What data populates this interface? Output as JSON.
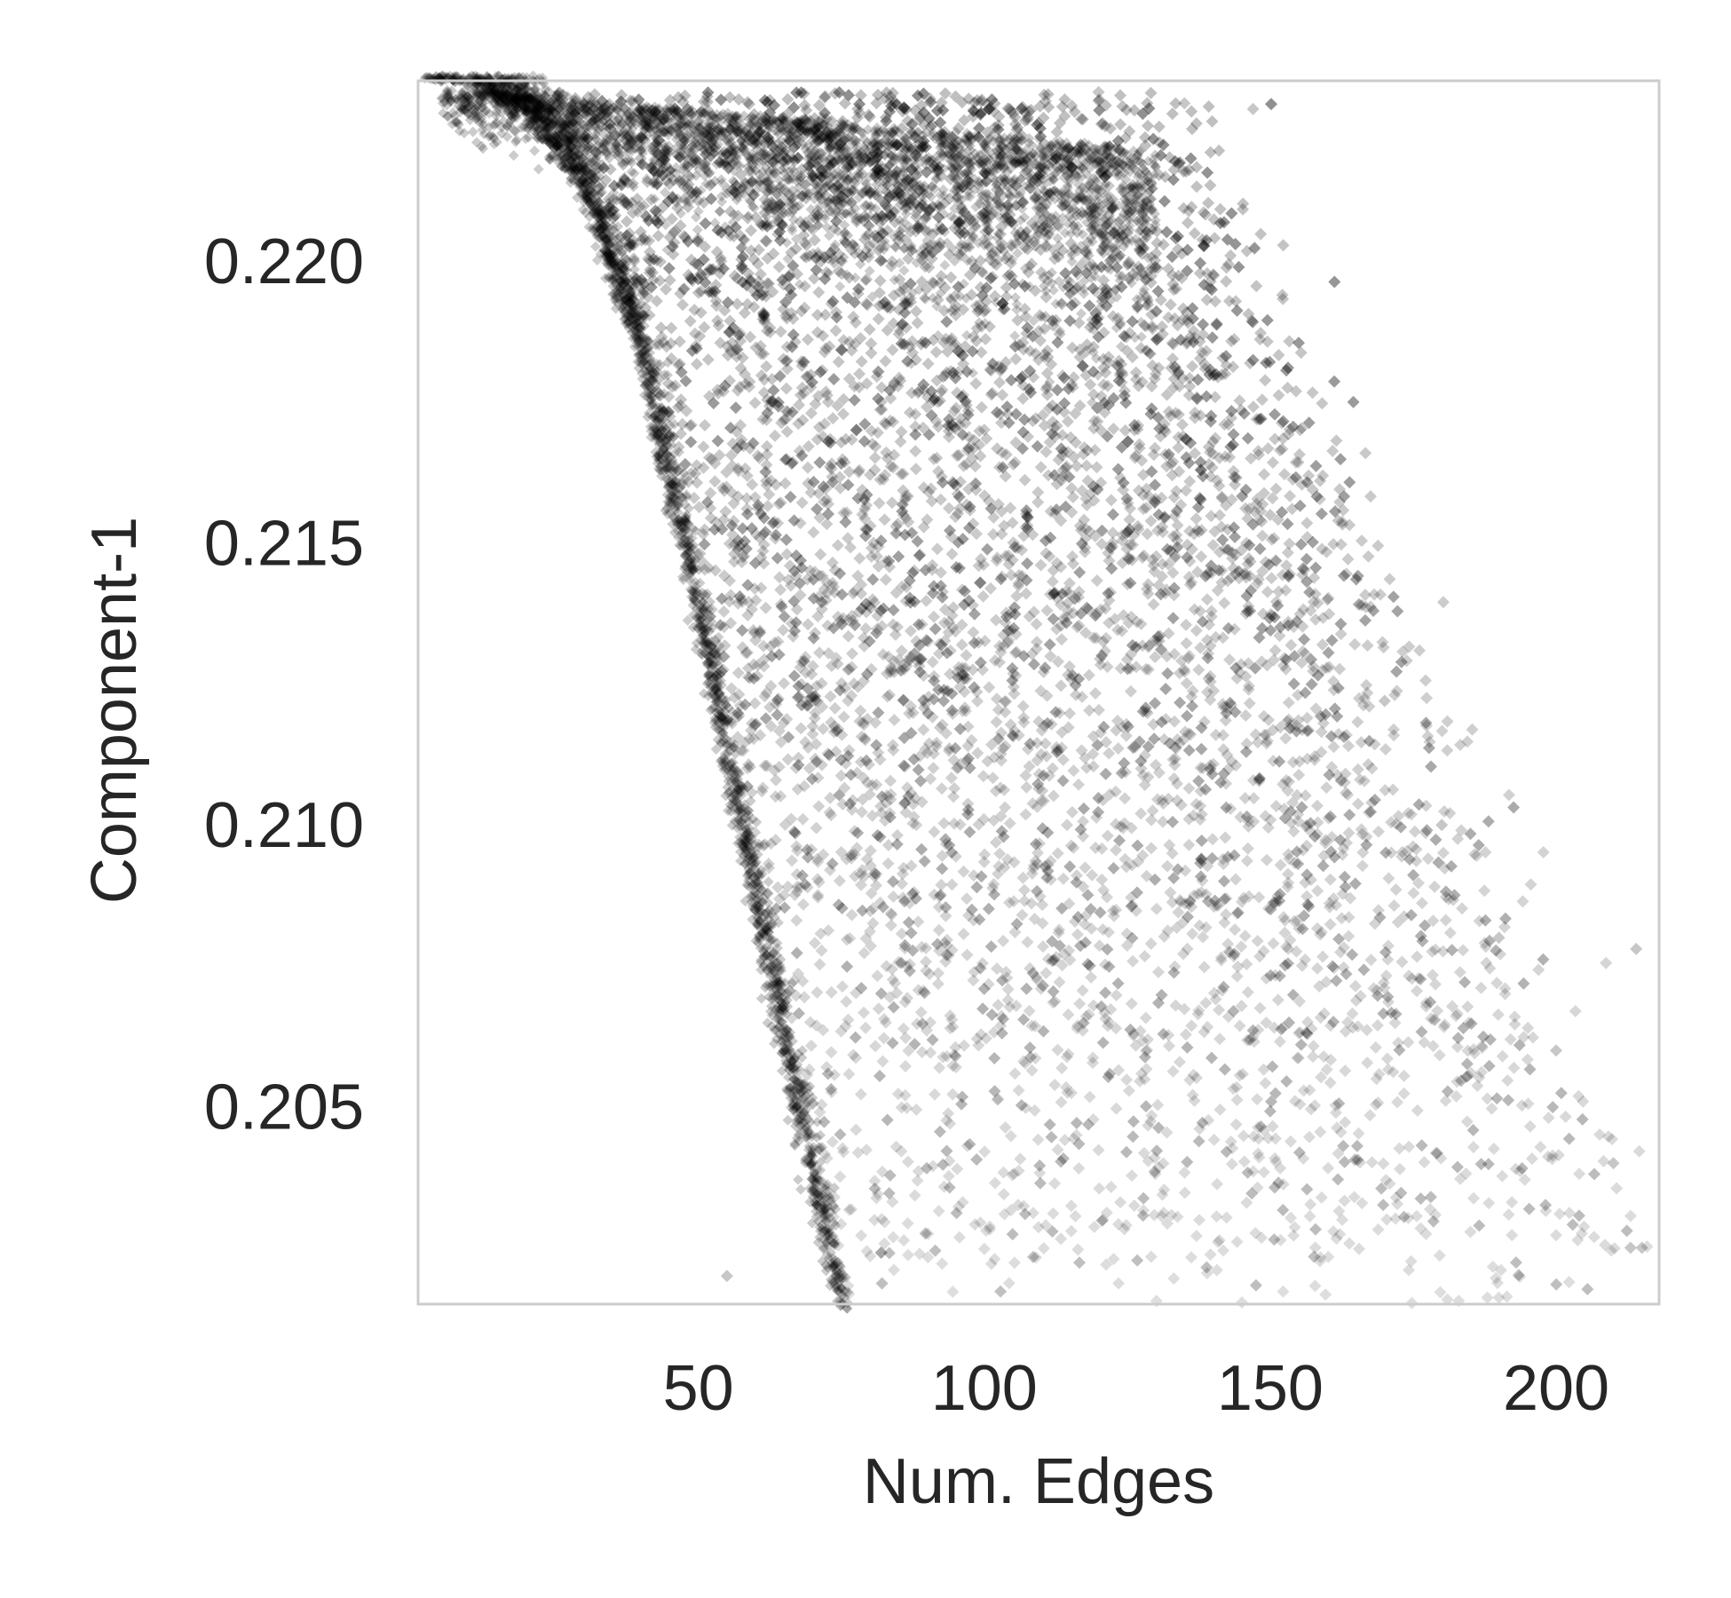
{
  "chart_data": {
    "type": "scatter",
    "title": "",
    "xlabel": "Num. Edges",
    "ylabel": "Component-1",
    "xlim": [
      1,
      218
    ],
    "ylim": [
      0.2015,
      0.2232
    ],
    "xticks": [
      50,
      100,
      150,
      200
    ],
    "xtick_labels": [
      "50",
      "100",
      "150",
      "200"
    ],
    "yticks": [
      0.205,
      0.21,
      0.215,
      0.22
    ],
    "ytick_labels": [
      "0.205",
      "0.210",
      "0.215",
      "0.220"
    ],
    "grid": false,
    "marker": "diamond",
    "marker_color": "#000000",
    "marker_alpha": 0.22,
    "frame_color": "#cccccc",
    "series": [
      {
        "values": [
          {
            "x": 5,
            "y": 0.2232
          },
          {
            "x": 10,
            "y": 0.2231
          },
          {
            "x": 15,
            "y": 0.2229
          },
          {
            "x": 20,
            "y": 0.2226
          },
          {
            "x": 25,
            "y": 0.222
          },
          {
            "x": 30,
            "y": 0.2212
          },
          {
            "x": 35,
            "y": 0.22
          },
          {
            "x": 40,
            "y": 0.2182
          },
          {
            "x": 45,
            "y": 0.216
          },
          {
            "x": 50,
            "y": 0.2135
          },
          {
            "x": 55,
            "y": 0.211
          },
          {
            "x": 60,
            "y": 0.2085
          },
          {
            "x": 65,
            "y": 0.206
          },
          {
            "x": 70,
            "y": 0.2035
          },
          {
            "x": 75,
            "y": 0.2015
          },
          {
            "x": 30,
            "y": 0.2228
          },
          {
            "x": 40,
            "y": 0.2225
          },
          {
            "x": 50,
            "y": 0.2222
          },
          {
            "x": 60,
            "y": 0.2218
          },
          {
            "x": 70,
            "y": 0.2215
          },
          {
            "x": 80,
            "y": 0.2212
          },
          {
            "x": 90,
            "y": 0.2208
          },
          {
            "x": 100,
            "y": 0.2203
          },
          {
            "x": 110,
            "y": 0.2198
          },
          {
            "x": 120,
            "y": 0.219
          },
          {
            "x": 130,
            "y": 0.218
          },
          {
            "x": 140,
            "y": 0.2168
          },
          {
            "x": 150,
            "y": 0.2155
          },
          {
            "x": 160,
            "y": 0.214
          },
          {
            "x": 170,
            "y": 0.2122
          },
          {
            "x": 180,
            "y": 0.21
          },
          {
            "x": 190,
            "y": 0.208
          },
          {
            "x": 200,
            "y": 0.206
          },
          {
            "x": 210,
            "y": 0.204
          },
          {
            "x": 215,
            "y": 0.2025
          },
          {
            "x": 120,
            "y": 0.223
          },
          {
            "x": 135,
            "y": 0.2228
          },
          {
            "x": 147,
            "y": 0.2227
          },
          {
            "x": 214,
            "y": 0.2078
          },
          {
            "x": 213,
            "y": 0.2025
          },
          {
            "x": 55,
            "y": 0.202
          }
        ]
      }
    ]
  }
}
